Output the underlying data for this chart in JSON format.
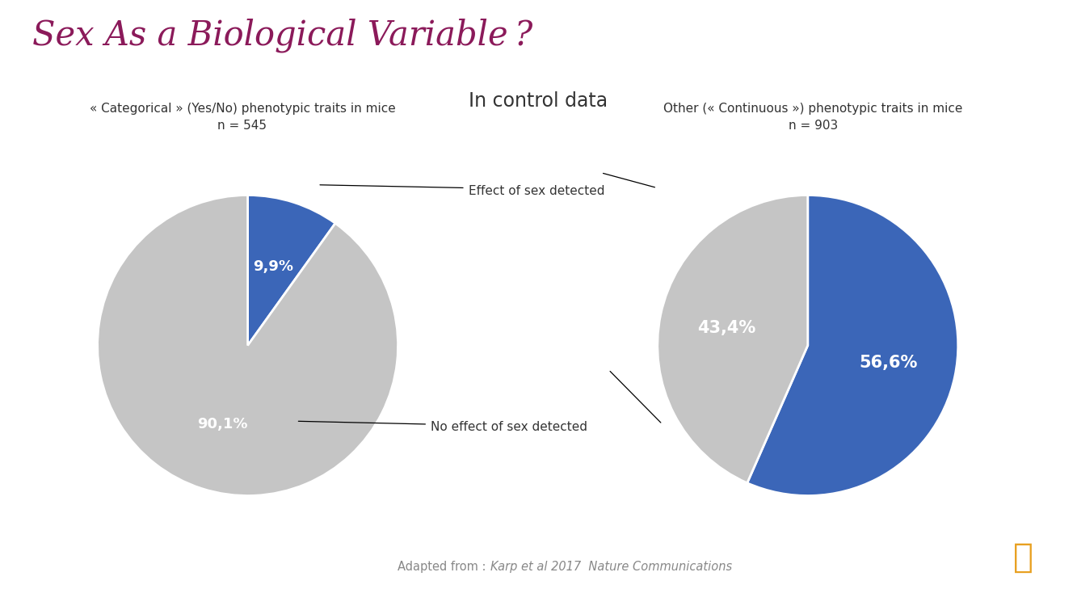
{
  "title": "Sex As a Biological Variable ?",
  "subtitle": "In control data",
  "title_color": "#8B1A5A",
  "subtitle_color": "#333333",
  "bg_color": "#FFFFFF",
  "pie1_title": "« Categorical » (Yes/No) phenotypic traits in mice\nn = 545",
  "pie1_values": [
    9.9,
    90.1
  ],
  "pie1_pct_labels": [
    "9,9%",
    "90,1%"
  ],
  "pie1_colors": [
    "#3B66B8",
    "#C5C5C5"
  ],
  "pie2_title": "Other (« Continuous ») phenotypic traits in mice\nn = 903",
  "pie2_values": [
    56.6,
    43.4
  ],
  "pie2_pct_labels": [
    "56,6%",
    "43,4%"
  ],
  "pie2_colors": [
    "#3B66B8",
    "#C5C5C5"
  ],
  "annot_effect": "Effect of sex detected",
  "annot_noeffect": "No effect of sex detected",
  "annot_color": "#333333",
  "footer_plain": "Adapted from : ",
  "footer_italic": "Karp et al 2017  Nature Communications",
  "footer_color": "#888888",
  "blue_color": "#3B66B8",
  "gray_color": "#C5C5C5"
}
